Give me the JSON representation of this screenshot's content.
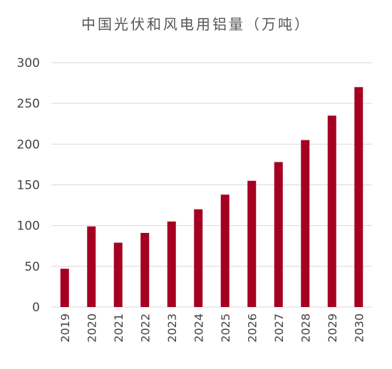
{
  "chart_data": {
    "type": "bar",
    "title": "中国光伏和风电用铝量（万吨）",
    "xlabel": "",
    "ylabel": "",
    "categories": [
      "2019",
      "2020",
      "2021",
      "2022",
      "2023",
      "2024",
      "2025",
      "2026",
      "2027",
      "2028",
      "2029",
      "2030"
    ],
    "values": [
      47,
      99,
      79,
      91,
      105,
      120,
      138,
      155,
      178,
      205,
      235,
      270
    ],
    "ylim": [
      0,
      300
    ],
    "yticks": [
      0,
      50,
      100,
      150,
      200,
      250,
      300
    ],
    "grid": true,
    "legend": "none",
    "bar_color": "#A50021",
    "grid_color": "#d9d9d9"
  }
}
